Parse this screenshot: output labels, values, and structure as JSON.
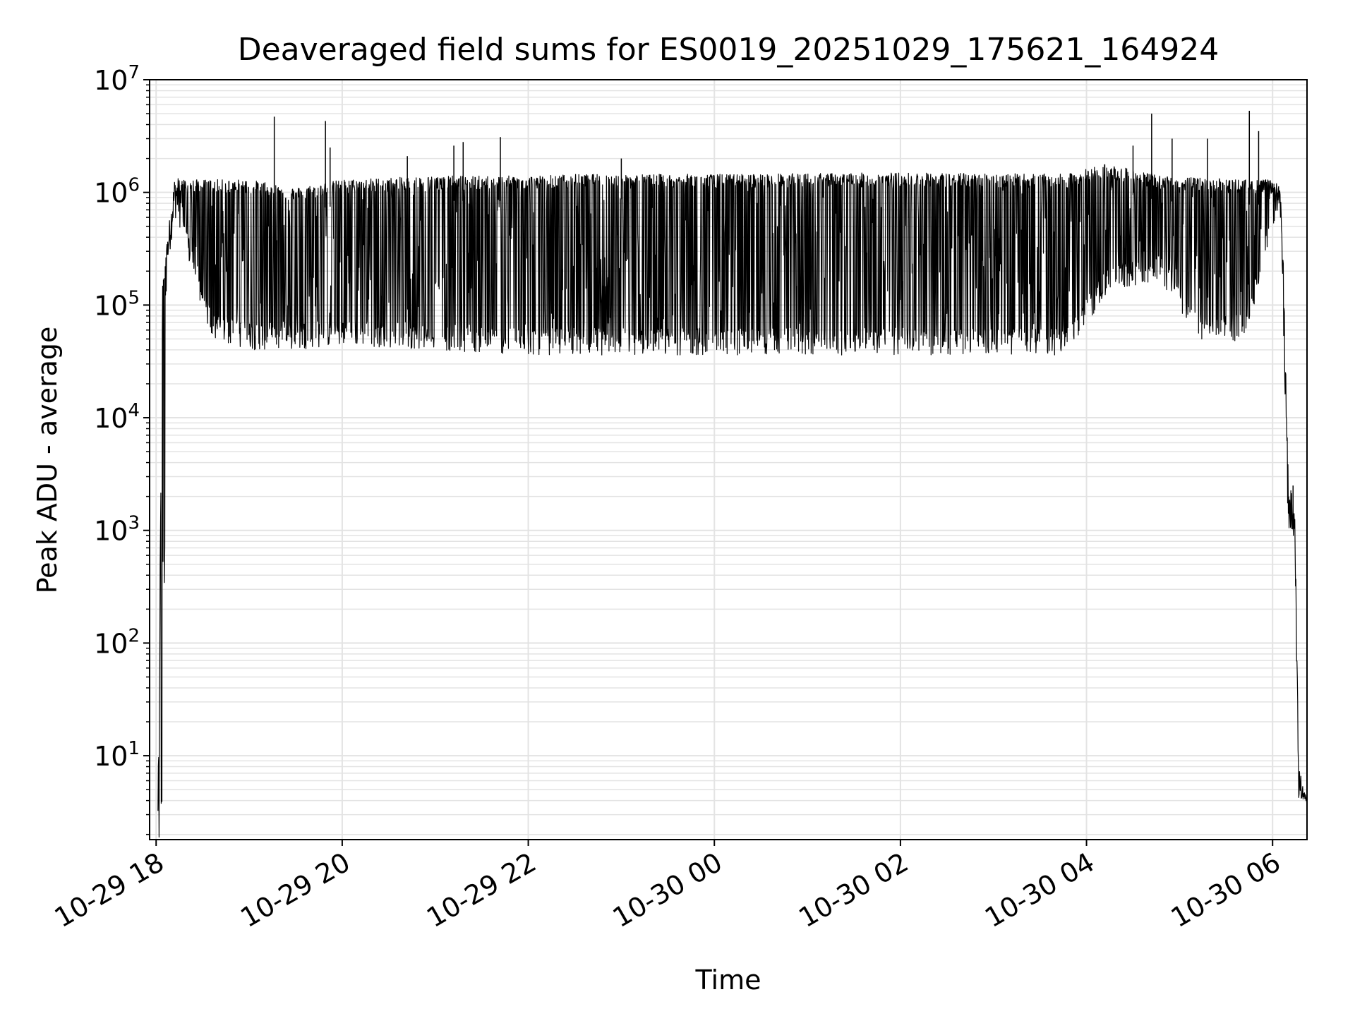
{
  "chart_data": {
    "type": "line",
    "title": "Deaveraged field sums for ES0019_20251029_175621_164924",
    "xlabel": "Time",
    "ylabel": "Peak ADU - average",
    "yscale": "log",
    "ylim": [
      1.8,
      10000000
    ],
    "xlim_hours": [
      17.93,
      30.37
    ],
    "grid": true,
    "line_color": "#000000",
    "grid_color": "#e3e3e3",
    "x_ticks": [
      {
        "hour": 18,
        "label": "10-29 18"
      },
      {
        "hour": 20,
        "label": "10-29 20"
      },
      {
        "hour": 22,
        "label": "10-29 22"
      },
      {
        "hour": 24,
        "label": "10-30 00"
      },
      {
        "hour": 26,
        "label": "10-30 02"
      },
      {
        "hour": 28,
        "label": "10-30 04"
      },
      {
        "hour": 30,
        "label": "10-30 06"
      }
    ],
    "y_ticks": [
      {
        "exp": 1,
        "base": "10",
        "sup": "1"
      },
      {
        "exp": 2,
        "base": "10",
        "sup": "2"
      },
      {
        "exp": 3,
        "base": "10",
        "sup": "3"
      },
      {
        "exp": 4,
        "base": "10",
        "sup": "4"
      },
      {
        "exp": 5,
        "base": "10",
        "sup": "5"
      },
      {
        "exp": 6,
        "base": "10",
        "sup": "6"
      },
      {
        "exp": 7,
        "base": "10",
        "sup": "7"
      }
    ],
    "series": [
      {
        "name": "Peak ADU - average",
        "envelope": [
          {
            "hour": 18.02,
            "high": 4,
            "low": 1.8
          },
          {
            "hour": 18.07,
            "high": 150000,
            "low": 3.5
          },
          {
            "hour": 18.12,
            "high": 400000,
            "low": 200000
          },
          {
            "hour": 18.2,
            "high": 1400000,
            "low": 600000
          },
          {
            "hour": 18.3,
            "high": 1300000,
            "low": 400000
          },
          {
            "hour": 18.6,
            "high": 1300000,
            "low": 60000
          },
          {
            "hour": 19.0,
            "high": 1300000,
            "low": 50000
          },
          {
            "hour": 19.5,
            "high": 1100000,
            "low": 50000
          },
          {
            "hour": 20.0,
            "high": 1300000,
            "low": 55000
          },
          {
            "hour": 21.0,
            "high": 1400000,
            "low": 50000
          },
          {
            "hour": 21.9,
            "high": 1400000,
            "low": 45000
          },
          {
            "hour": 22.5,
            "high": 1450000,
            "low": 45000
          },
          {
            "hour": 24.0,
            "high": 1450000,
            "low": 45000
          },
          {
            "hour": 26.0,
            "high": 1500000,
            "low": 45000
          },
          {
            "hour": 27.8,
            "high": 1450000,
            "low": 45000
          },
          {
            "hour": 28.2,
            "high": 1800000,
            "low": 150000
          },
          {
            "hour": 28.8,
            "high": 1400000,
            "low": 200000
          },
          {
            "hour": 29.2,
            "high": 1350000,
            "low": 60000
          },
          {
            "hour": 29.7,
            "high": 1300000,
            "low": 60000
          },
          {
            "hour": 29.95,
            "high": 1300000,
            "low": 350000
          },
          {
            "hour": 30.08,
            "high": 1200000,
            "low": 800000
          },
          {
            "hour": 30.12,
            "high": 200000,
            "low": 50000
          },
          {
            "hour": 30.17,
            "high": 3000,
            "low": 1000
          },
          {
            "hour": 30.24,
            "high": 1500,
            "low": 700
          },
          {
            "hour": 30.28,
            "high": 8,
            "low": 4
          },
          {
            "hour": 30.37,
            "high": 4,
            "low": 3.8
          }
        ],
        "spikes": [
          {
            "hour": 19.27,
            "value": 4700000
          },
          {
            "hour": 19.82,
            "value": 4300000
          },
          {
            "hour": 19.87,
            "value": 2500000
          },
          {
            "hour": 20.7,
            "value": 2100000
          },
          {
            "hour": 21.2,
            "value": 2600000
          },
          {
            "hour": 21.3,
            "value": 2800000
          },
          {
            "hour": 21.7,
            "value": 3100000
          },
          {
            "hour": 23.0,
            "value": 2000000
          },
          {
            "hour": 28.5,
            "value": 2600000
          },
          {
            "hour": 28.7,
            "value": 5000000
          },
          {
            "hour": 28.92,
            "value": 3000000
          },
          {
            "hour": 29.3,
            "value": 3000000
          },
          {
            "hour": 29.75,
            "value": 5300000
          },
          {
            "hour": 29.85,
            "value": 3500000
          },
          {
            "hour": 30.22,
            "value": 2500
          }
        ]
      }
    ]
  }
}
